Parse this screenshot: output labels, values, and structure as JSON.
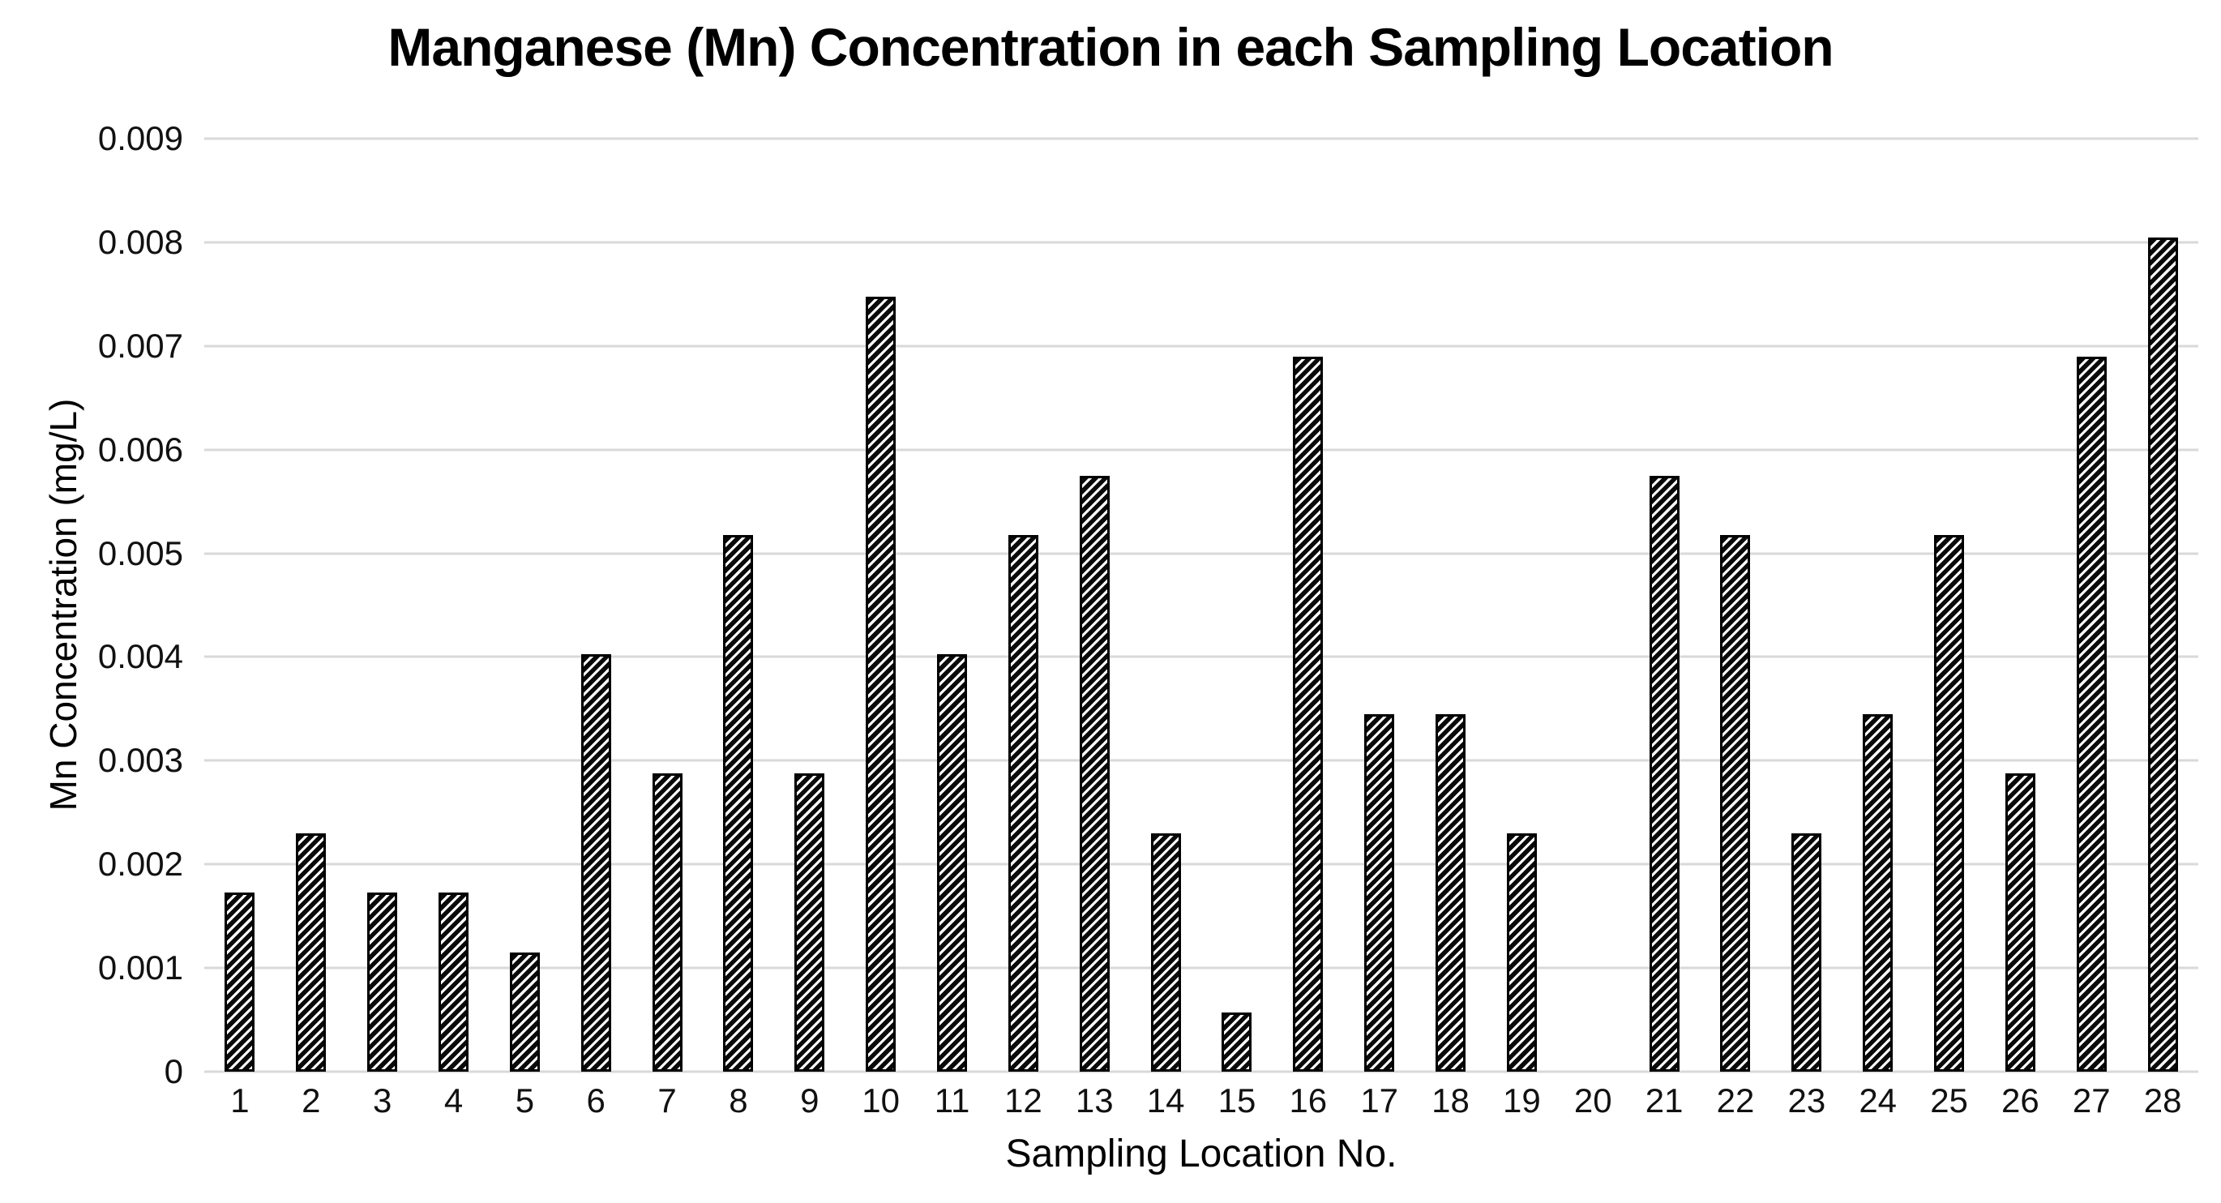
{
  "chart_data": {
    "type": "bar",
    "title": "Manganese (Mn) Concentration in each Sampling Location",
    "xlabel": "Sampling Location No.",
    "ylabel": "Mn Concentration (mg/L)",
    "categories": [
      "1",
      "2",
      "3",
      "4",
      "5",
      "6",
      "7",
      "8",
      "9",
      "10",
      "11",
      "12",
      "13",
      "14",
      "15",
      "16",
      "17",
      "18",
      "19",
      "20",
      "21",
      "22",
      "23",
      "24",
      "25",
      "26",
      "27",
      "28"
    ],
    "values": [
      0.001725,
      0.0023,
      0.001725,
      0.001725,
      0.00115,
      0.004025,
      0.002875,
      0.005175,
      0.002875,
      0.007475,
      0.004025,
      0.005175,
      0.00575,
      0.0023,
      0.000575,
      0.0069,
      0.00345,
      0.00345,
      0.0023,
      0,
      0.00575,
      0.005175,
      0.0023,
      0.00345,
      0.005175,
      0.002875,
      0.0069,
      0.00805
    ],
    "ylim": [
      0,
      0.009
    ],
    "ytick_labels": [
      "0",
      "0.001",
      "0.002",
      "0.003",
      "0.004",
      "0.005",
      "0.006",
      "0.007",
      "0.008",
      "0.009"
    ],
    "grid": true,
    "legend_position": "none",
    "bar_fill_style": "upward-diagonal-hatch",
    "colors": {
      "bar_hatch": "#0a0a0a",
      "bar_hatch_background": "#fafafa",
      "bar_border": "#000000",
      "gridline": "#d9d9d9",
      "text": "#000000"
    }
  }
}
